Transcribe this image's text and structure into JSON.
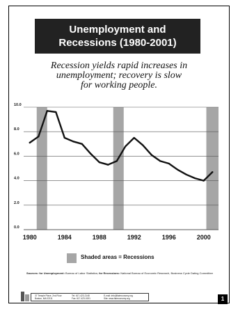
{
  "header": {
    "title_line1": "Unemployment and",
    "title_line2": "Recessions  (1980-2001)"
  },
  "subtitle": {
    "line1": "Recession yields rapid increases in",
    "line2": "unemployment; recovery is slow",
    "line3": "for working people."
  },
  "chart_data": {
    "type": "line",
    "title": "Unemployment and Recessions  (1980-2001)",
    "xlabel": "",
    "ylabel": "",
    "xlim": [
      1979.3,
      2001.7
    ],
    "ylim": [
      0,
      10
    ],
    "yticks": [
      "0.0",
      "2.0",
      "4.0",
      "6.0",
      "8.0",
      "10.0"
    ],
    "ytick_values": [
      0,
      2,
      4,
      6,
      8,
      10
    ],
    "xticks": [
      "1980",
      "1984",
      "1988",
      "1992",
      "1996",
      "2000"
    ],
    "xtick_values": [
      1980,
      1984,
      1988,
      1992,
      1996,
      2000
    ],
    "grid": true,
    "series": [
      {
        "name": "",
        "x": [
          1980,
          1981,
          1982,
          1983,
          1984,
          1985,
          1986,
          1987,
          1988,
          1989,
          1990,
          1991,
          1992,
          1993,
          1994,
          1995,
          1996,
          1997,
          1998,
          1999,
          2000,
          2001
        ],
        "values": [
          7.1,
          7.6,
          9.7,
          9.6,
          7.5,
          7.2,
          7.0,
          6.2,
          5.5,
          5.3,
          5.6,
          6.8,
          7.5,
          6.9,
          6.1,
          5.6,
          5.4,
          4.9,
          4.5,
          4.2,
          4.0,
          4.7
        ],
        "color": "#111111"
      }
    ],
    "recessions": [
      {
        "start": 1980.8,
        "end": 1982.0
      },
      {
        "start": 1989.6,
        "end": 1990.8
      },
      {
        "start": 2000.3,
        "end": 2001.8
      }
    ],
    "recession_color": "#a6a6a6",
    "legend": "Shaded areas = Recessions",
    "legend_position": "bottom"
  },
  "sources": {
    "label": "Sources:",
    "unemployment_label": "for Unemployment:",
    "unemployment_source": "Bureau of Labor Statistics;",
    "recessions_label": "for Recessions:",
    "recessions_source": "National Bureau of Economic Research, Business Cycle Dating Committee"
  },
  "footer": {
    "address_line1": "37 Temple Place, 2nd Floor",
    "address_line2": "Boston, MA 02111",
    "phone": "Tel: 617-423-2148",
    "fax": "Fax: 617-423-0191",
    "email": "E-mail: info@faireconomy.org",
    "web": "Site: www.faireconomy.org",
    "page_number": "1"
  }
}
